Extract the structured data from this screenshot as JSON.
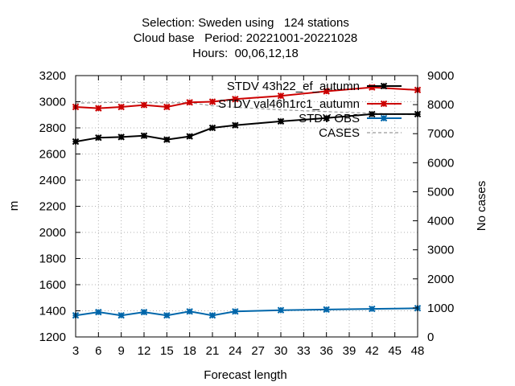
{
  "title_lines": [
    "Selection: Sweden using   124 stations",
    "Cloud base   Period: 20221001-20221028",
    "Hours:  00,06,12,18"
  ],
  "chart_data": {
    "type": "line",
    "xlabel": "Forecast length",
    "ylabel": "m",
    "y2label": "No cases",
    "x": [
      3,
      6,
      9,
      12,
      15,
      18,
      21,
      24,
      27,
      30,
      33,
      36,
      39,
      42,
      45,
      48
    ],
    "x_ticks": [
      3,
      6,
      9,
      12,
      15,
      18,
      21,
      24,
      27,
      30,
      33,
      36,
      39,
      42,
      45,
      48
    ],
    "xlim": [
      3,
      48
    ],
    "ylim": [
      1200,
      3200
    ],
    "y_ticks": [
      1200,
      1400,
      1600,
      1800,
      2000,
      2200,
      2400,
      2600,
      2800,
      3000,
      3200
    ],
    "y2lim": [
      0,
      9000
    ],
    "y2_ticks": [
      0,
      1000,
      2000,
      3000,
      4000,
      5000,
      6000,
      7000,
      8000,
      9000
    ],
    "grid": true,
    "legend_position": "top-right",
    "series": [
      {
        "name": "STDV 43h22_ef_autumn",
        "legend_text": "STDV 43h22_ef_autumn",
        "color": "#000000",
        "axis": "y",
        "x": [
          3,
          6,
          9,
          12,
          15,
          18,
          21,
          24,
          30,
          36,
          42,
          48
        ],
        "values": [
          2695,
          2725,
          2730,
          2740,
          2710,
          2735,
          2800,
          2820,
          2850,
          2875,
          2905,
          2905
        ]
      },
      {
        "name": "STDV val46h1rc1_autumn",
        "legend_text": "STDV val46h1rc1_autumn",
        "color": "#cc0000",
        "axis": "y",
        "x": [
          3,
          6,
          9,
          12,
          15,
          18,
          21,
          24,
          30,
          36,
          42,
          48
        ],
        "values": [
          2960,
          2950,
          2960,
          2975,
          2960,
          2995,
          3000,
          3020,
          3045,
          3080,
          3110,
          3090
        ]
      },
      {
        "name": "STDV OBS",
        "legend_text": "STDV OBS",
        "color": "#0066aa",
        "axis": "y",
        "x": [
          3,
          6,
          9,
          12,
          15,
          18,
          21,
          24,
          30,
          36,
          42,
          48
        ],
        "values": [
          1365,
          1390,
          1365,
          1390,
          1365,
          1395,
          1365,
          1395,
          1405,
          1410,
          1415,
          1420
        ]
      },
      {
        "name": "CASES",
        "legend_text": "CASES",
        "color": "#999999",
        "axis": "y2",
        "dashed": true,
        "x": [
          3,
          6,
          9,
          12,
          15,
          18,
          21,
          24,
          30,
          36,
          42,
          48
        ],
        "values": [
          8050,
          8070,
          8080,
          8070,
          8060,
          8070,
          7960,
          7910,
          7820,
          7760,
          7700,
          7650
        ]
      }
    ]
  }
}
